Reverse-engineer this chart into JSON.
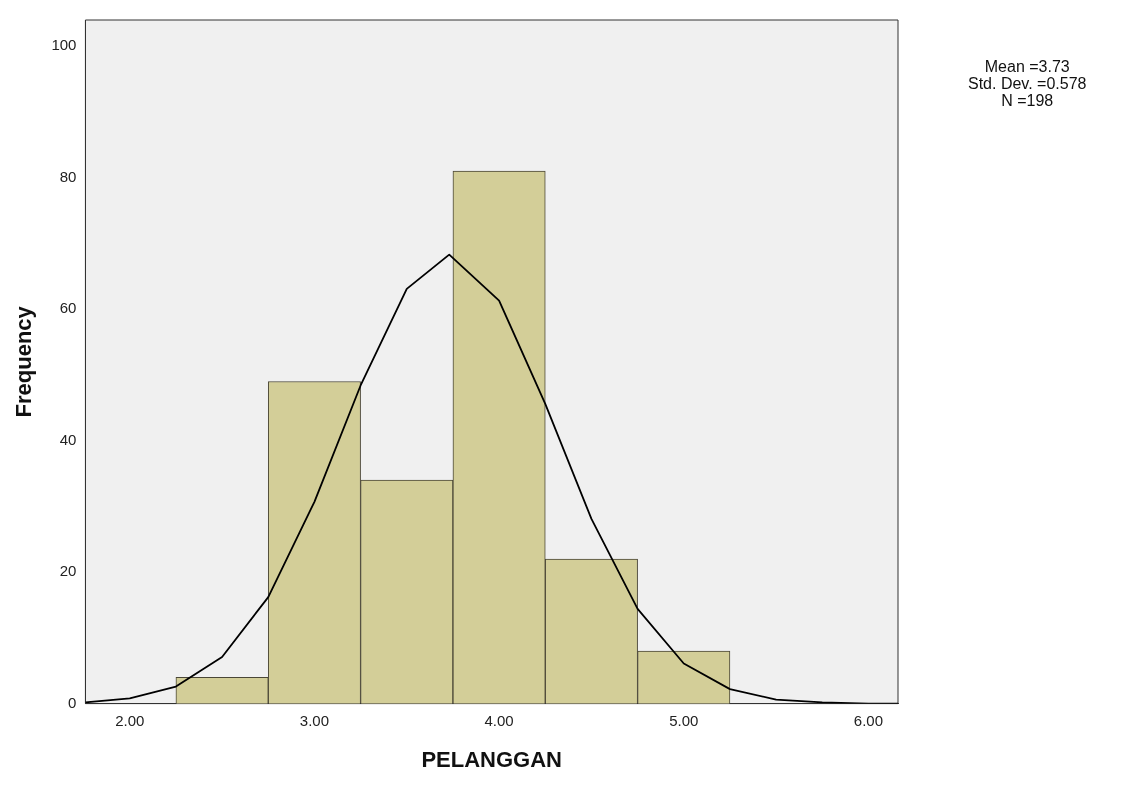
{
  "chart_data": {
    "type": "histogram",
    "xlabel": "PELANGGAN",
    "ylabel": "Frequency",
    "bins": [
      2.25,
      2.75,
      3.25,
      3.75,
      4.25,
      4.75,
      5.25
    ],
    "values": [
      4,
      49,
      34,
      81,
      22,
      8
    ],
    "color": "#d3ce98",
    "series": [
      {
        "type": "line",
        "color": "#000000",
        "x": [
          1.76,
          2.0,
          2.25,
          2.5,
          2.75,
          3.0,
          3.25,
          3.5,
          3.73,
          4.0,
          4.25,
          4.5,
          4.75,
          5.0,
          5.25,
          5.5,
          5.75,
          6.0,
          6.16
        ],
        "values": [
          0.2,
          0.8,
          2.6,
          7.1,
          16.2,
          30.7,
          48.4,
          63.1,
          68.3,
          61.3,
          45.6,
          28.1,
          14.4,
          6.1,
          2.2,
          0.6,
          0.2,
          0.0,
          0.0
        ]
      }
    ],
    "xlim": [
      1.76,
      6.16
    ],
    "ylim": [
      0,
      104
    ],
    "xticks": [
      {
        "value": 2,
        "label": "2.00"
      },
      {
        "value": 3,
        "label": "3.00"
      },
      {
        "value": 4,
        "label": "4.00"
      },
      {
        "value": 5,
        "label": "5.00"
      },
      {
        "value": 6,
        "label": "6.00"
      }
    ],
    "yticks": [
      0,
      20,
      40,
      60,
      80,
      100
    ],
    "grid": false,
    "legend": false,
    "marker": "none",
    "line_style": "solid",
    "annotations": [
      "Mean =3.73",
      "Std. Dev. =0.578",
      "N =198"
    ]
  }
}
